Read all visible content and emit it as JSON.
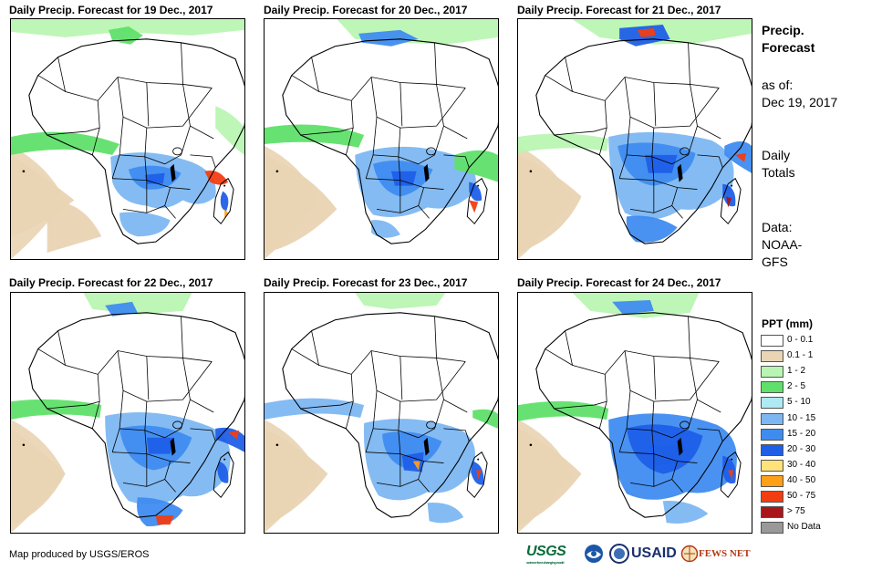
{
  "panels": [
    {
      "title": "Daily Precip. Forecast for 19 Dec., 2017"
    },
    {
      "title": "Daily Precip. Forecast for 20 Dec., 2017"
    },
    {
      "title": "Daily Precip. Forecast for 21 Dec., 2017"
    },
    {
      "title": "Daily Precip. Forecast for 22 Dec., 2017"
    },
    {
      "title": "Daily Precip. Forecast for 23 Dec., 2017"
    },
    {
      "title": "Daily Precip. Forecast for 24 Dec., 2017"
    }
  ],
  "side": {
    "heading_line1": "Precip.",
    "heading_line2": "Forecast",
    "asof_line1": "as of:",
    "asof_line2": "Dec 19, 2017",
    "totals_line1": "Daily",
    "totals_line2": "Totals",
    "data_line1": "Data:",
    "data_line2": "NOAA-",
    "data_line3": "GFS"
  },
  "legend": {
    "title": "PPT (mm)",
    "items": [
      {
        "label": "0 - 0.1",
        "color": "#ffffff"
      },
      {
        "label": "0.1 - 1",
        "color": "#e9d4b3"
      },
      {
        "label": "1 - 2",
        "color": "#b9f5b2"
      },
      {
        "label": "2 - 5",
        "color": "#5fe06a"
      },
      {
        "label": "5 - 10",
        "color": "#aee9f5"
      },
      {
        "label": "10 - 15",
        "color": "#7db7f2"
      },
      {
        "label": "15 - 20",
        "color": "#3f8cf0"
      },
      {
        "label": "20 - 30",
        "color": "#1f5fe8"
      },
      {
        "label": "30 - 40",
        "color": "#ffe27a"
      },
      {
        "label": "40 - 50",
        "color": "#ffa019"
      },
      {
        "label": "50 - 75",
        "color": "#f23d12"
      },
      {
        "label": "> 75",
        "color": "#a8161b"
      },
      {
        "label": "No Data",
        "color": "#999999"
      }
    ]
  },
  "footer": {
    "credit": "Map produced by USGS/EROS"
  },
  "logos": {
    "usgs": "USGS",
    "usgs_tagline": "science for a changing world",
    "usaid": "USAID",
    "fews": "FEWS NET"
  }
}
